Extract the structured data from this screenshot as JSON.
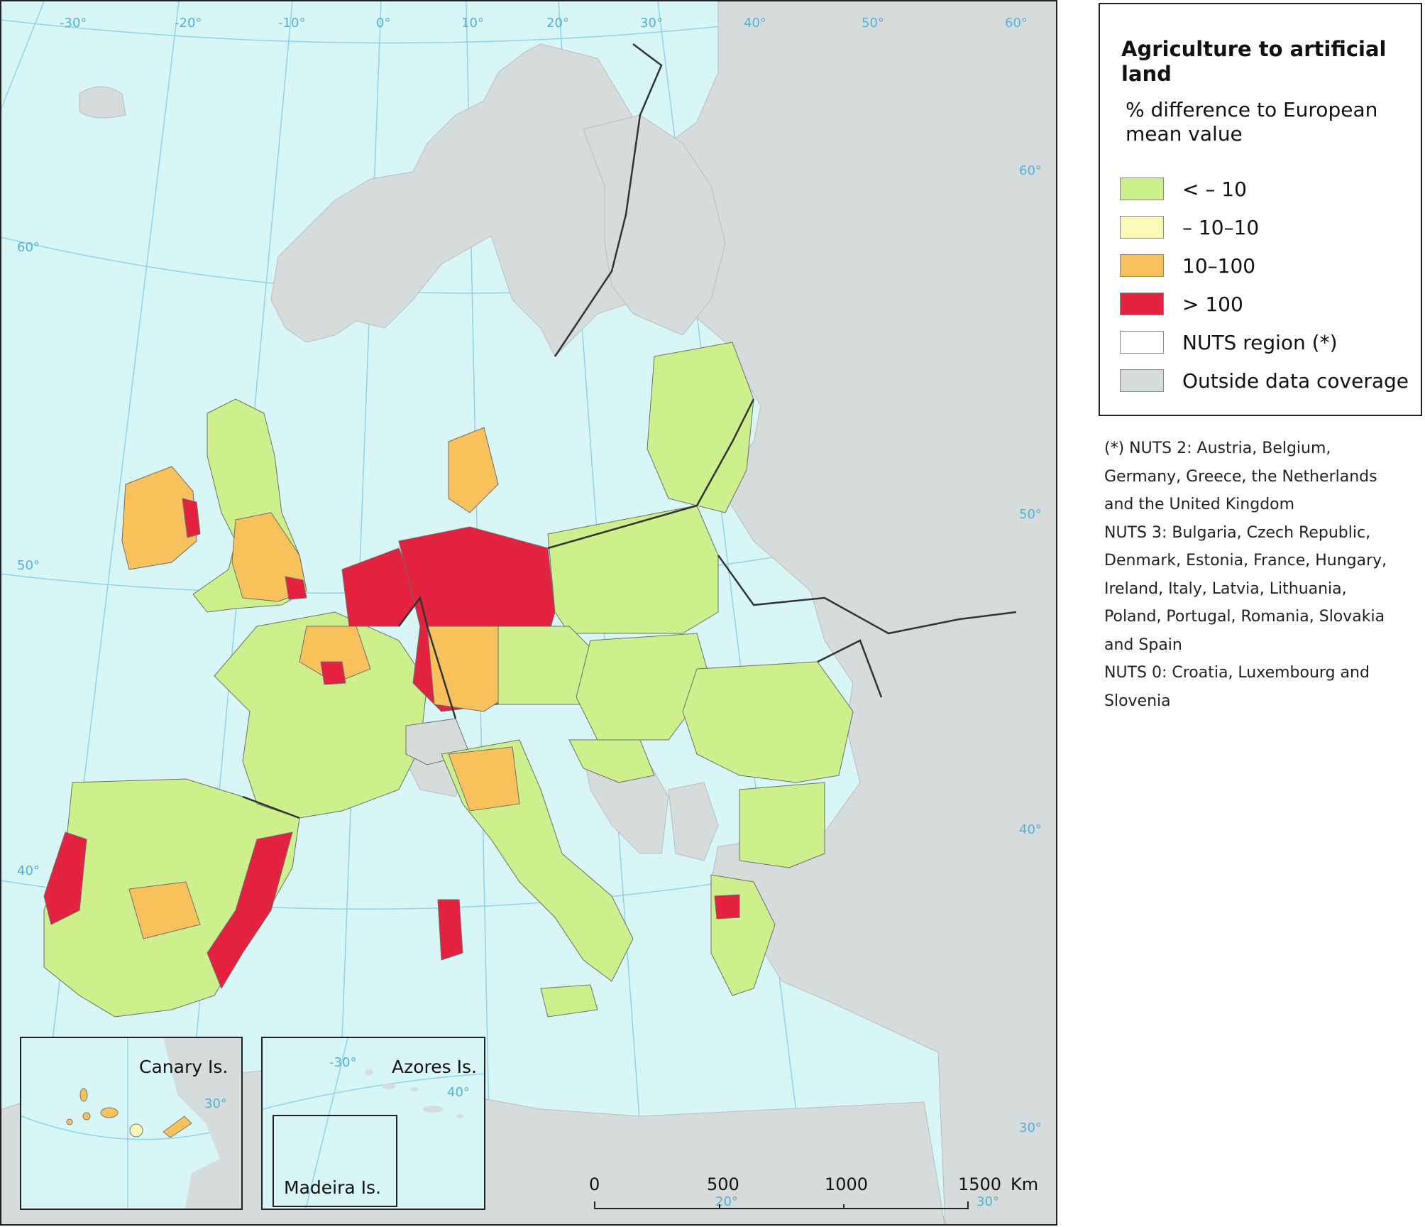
{
  "legend": {
    "title": "Agriculture to artificial land",
    "subtitle": "% difference to European mean value",
    "items": [
      {
        "label": " < – 10",
        "color": "#cdf08c"
      },
      {
        "label": "– 10–10",
        "color": "#fbf9b8"
      },
      {
        "label": "10–100",
        "color": "#f9c15c"
      },
      {
        "label": "> 100",
        "color": "#e3223f"
      },
      {
        "label": "NUTS region (*)",
        "color": "#ffffff"
      },
      {
        "label": "Outside data coverage",
        "color": "#d6dcdc"
      }
    ]
  },
  "notes": [
    "(*) NUTS 2: Austria, Belgium,",
    "Germany, Greece, the Netherlands",
    "and the United Kingdom",
    "NUTS 3: Bulgaria, Czech Republic,",
    "Denmark, Estonia, France, Hungary,",
    "Ireland, Italy, Latvia, Lithuania,",
    "Poland, Portugal, Romania, Slovakia",
    "and Spain",
    "NUTS 0: Croatia, Luxembourg and",
    "Slovenia"
  ],
  "map": {
    "colors": {
      "sea": "#d9f6f6",
      "outside": "#d6dcdc",
      "graticule": "#8fd3ea",
      "border": "#333333"
    },
    "graticule_labels": {
      "lon_top": [
        "-30°",
        "-20°",
        "-10°",
        "0°",
        "10°",
        "20°",
        "30°",
        "40°",
        "50°",
        "60°"
      ],
      "lat": [
        "60°",
        "60°",
        "50°",
        "50°",
        "40°",
        "40°",
        "30°"
      ],
      "lon_bottom": [
        "20°",
        "30°"
      ]
    },
    "insets": {
      "canary": "Canary Is.",
      "azores": "Azores Is.",
      "madeira": "Madeira Is.",
      "canary_grid": "30°",
      "azores_grid_lon": "-30°",
      "azores_grid_lat": "40°"
    },
    "scale_bar": {
      "ticks": [
        "0",
        "500",
        "1000",
        "1500"
      ],
      "unit": "Km"
    }
  }
}
